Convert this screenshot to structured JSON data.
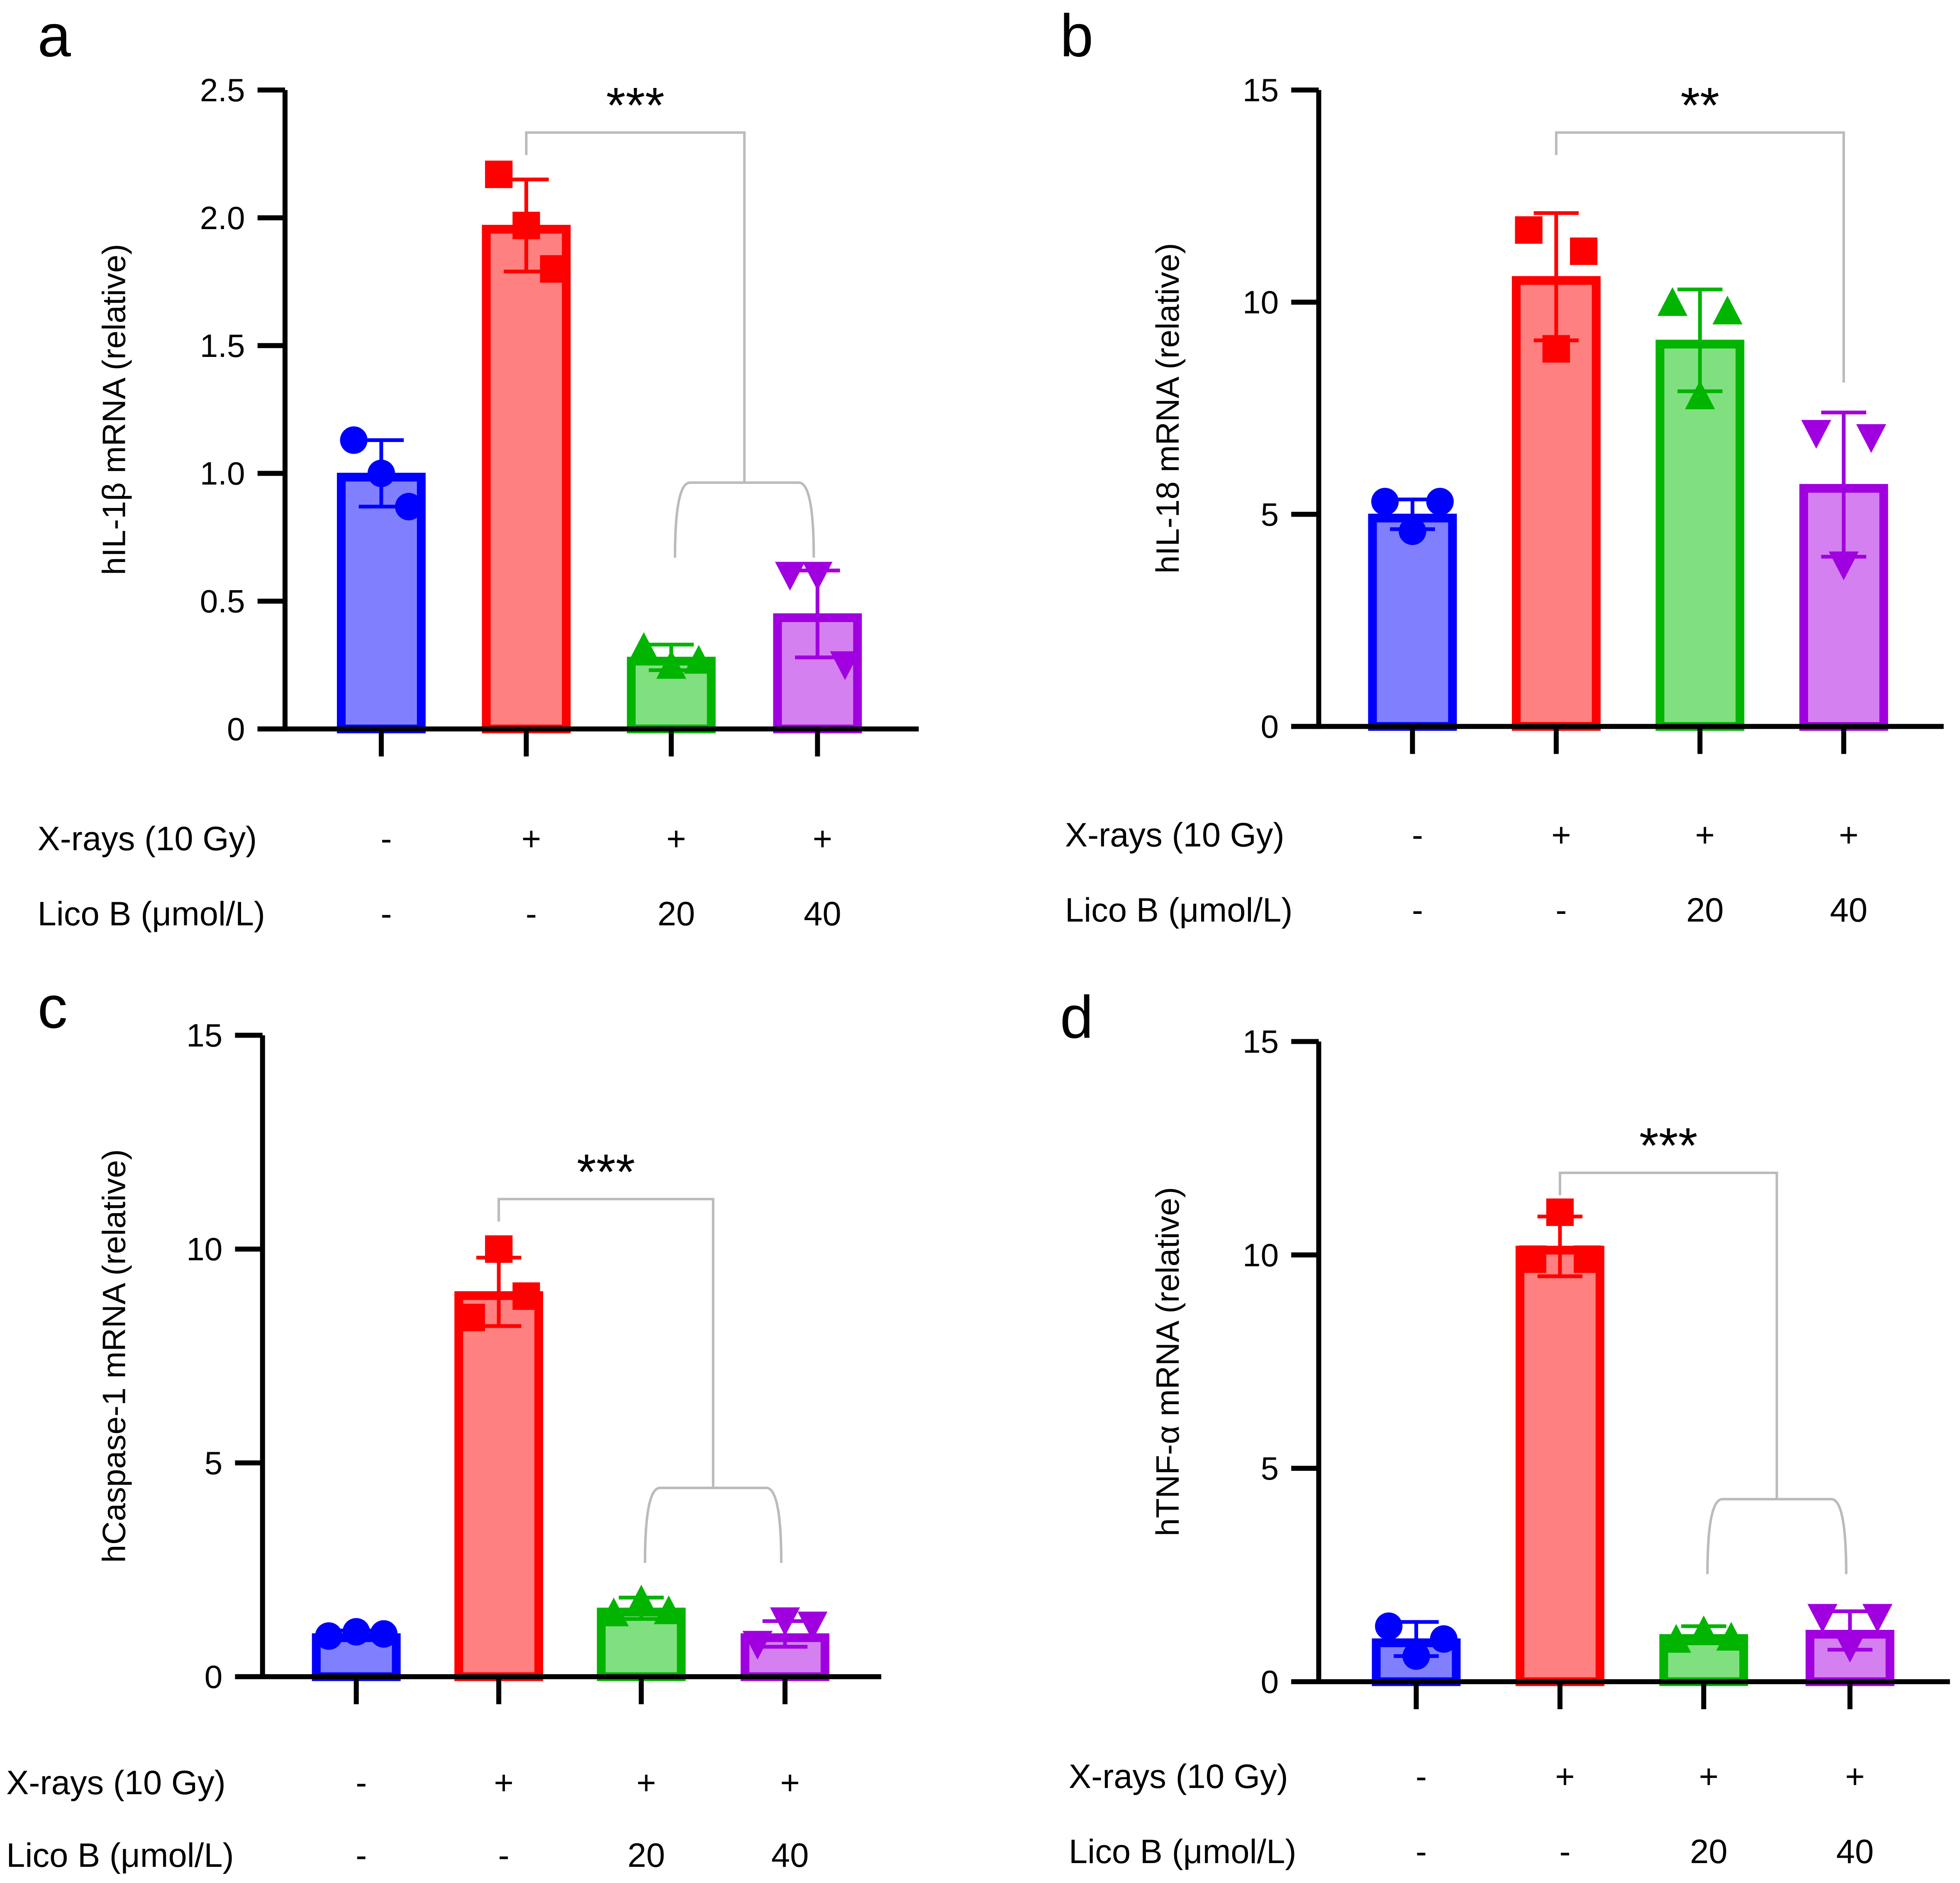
{
  "colors": {
    "stroke": [
      "#0000ff",
      "#ff0000",
      "#00b400",
      "#a000e0"
    ],
    "fill": [
      "#8080ff",
      "#ff8080",
      "#80e080",
      "#d580f0"
    ],
    "bracket": "#bbbbbb"
  },
  "row_labels": {
    "xrays": "X-rays (10 Gy)",
    "lico": "Lico B (μmol/L)"
  },
  "conditions": {
    "xrays": [
      "-",
      "+",
      "+",
      "+"
    ],
    "lico": [
      "-",
      "-",
      "20",
      "40"
    ]
  },
  "chart_data": [
    {
      "panel": "a",
      "type": "bar",
      "ylabel": "hIL-1β mRNA (relative)",
      "ylim": [
        0,
        2.5
      ],
      "yticks": [
        "0",
        "0.5",
        "1.0",
        "1.5",
        "2.0",
        "2.5"
      ],
      "ytick_values": [
        0,
        0.5,
        1,
        1.5,
        2,
        2.5
      ],
      "values": [
        1.0,
        1.97,
        0.28,
        0.45
      ],
      "errors": [
        0.13,
        0.18,
        0.05,
        0.17
      ],
      "points": [
        [
          1.13,
          1.0,
          0.87
        ],
        [
          2.17,
          1.97,
          1.8
        ],
        [
          0.32,
          0.25,
          0.27
        ],
        [
          0.6,
          0.6,
          0.25
        ]
      ],
      "comparison": {
        "from": 1,
        "to": [
          2,
          3
        ],
        "label": "***"
      }
    },
    {
      "panel": "b",
      "type": "bar",
      "ylabel": "hIL-18 mRNA (relative)",
      "ylim": [
        0,
        15
      ],
      "yticks": [
        "0",
        "5",
        "10",
        "15"
      ],
      "ytick_values": [
        0,
        5,
        10,
        15
      ],
      "values": [
        5.0,
        10.6,
        9.1,
        5.7
      ],
      "errors": [
        0.35,
        1.5,
        1.2,
        1.7
      ],
      "points": [
        [
          5.3,
          4.6,
          5.3
        ],
        [
          11.7,
          8.9,
          11.2
        ],
        [
          10.0,
          7.8,
          9.8
        ],
        [
          6.9,
          3.8,
          6.8
        ]
      ],
      "comparison": {
        "from": 1,
        "to": [
          3
        ],
        "label": "**"
      }
    },
    {
      "panel": "c",
      "type": "bar",
      "ylabel": "hCaspase-1 mRNA (relative)",
      "ylim": [
        0,
        15
      ],
      "yticks": [
        "0",
        "5",
        "10",
        "15"
      ],
      "ytick_values": [
        0,
        5,
        10,
        15
      ],
      "values": [
        1.0,
        9.0,
        1.6,
        1.0
      ],
      "errors": [
        0.08,
        0.8,
        0.25,
        0.3
      ],
      "points": [
        [
          0.95,
          1.05,
          1.0
        ],
        [
          8.4,
          10.0,
          8.9
        ],
        [
          1.5,
          1.8,
          1.55
        ],
        [
          0.75,
          1.3,
          1.2
        ]
      ],
      "comparison": {
        "from": 1,
        "to": [
          2,
          3
        ],
        "label": "***"
      }
    },
    {
      "panel": "d",
      "type": "bar",
      "ylabel": "hTNF-α mRNA (relative)",
      "ylim": [
        0,
        15
      ],
      "yticks": [
        "0",
        "5",
        "10",
        "15"
      ],
      "ytick_values": [
        0,
        5,
        10,
        15
      ],
      "values": [
        1.0,
        10.2,
        1.1,
        1.2
      ],
      "errors": [
        0.4,
        0.7,
        0.2,
        0.45
      ],
      "points": [
        [
          1.3,
          0.6,
          1.0
        ],
        [
          9.9,
          11.0,
          9.9
        ],
        [
          1.0,
          1.2,
          1.05
        ],
        [
          1.5,
          0.8,
          1.5
        ]
      ],
      "comparison": {
        "from": 1,
        "to": [
          2,
          3
        ],
        "label": "***"
      }
    }
  ]
}
